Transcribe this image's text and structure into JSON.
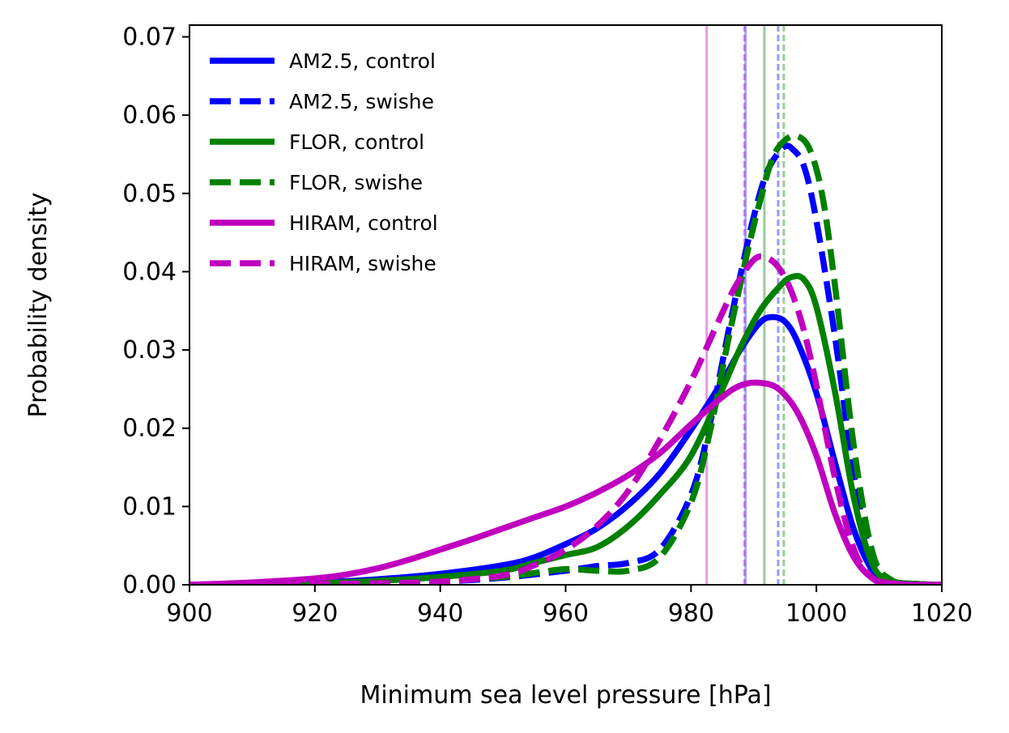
{
  "chart_data": {
    "type": "line",
    "xlabel": "Minimum sea level pressure [hPa]",
    "ylabel": "Probability density",
    "xlim": [
      900,
      1020
    ],
    "ylim": [
      0,
      0.0715
    ],
    "xticks": [
      900,
      920,
      940,
      960,
      980,
      1000,
      1020
    ],
    "yticks": [
      0.0,
      0.01,
      0.02,
      0.03,
      0.04,
      0.05,
      0.06,
      0.07
    ],
    "grid": false,
    "legend_position": "top-left",
    "series": [
      {
        "name": "AM2.5, control",
        "color": "#0000ff",
        "dash": "solid",
        "x": [
          900,
          920,
          930,
          940,
          950,
          955,
          960,
          965,
          970,
          975,
          980,
          985,
          988,
          991,
          993,
          995,
          997,
          1000,
          1003,
          1006,
          1009,
          1012,
          1016,
          1020
        ],
        "y": [
          0.0,
          0.0003,
          0.0007,
          0.0014,
          0.0025,
          0.0035,
          0.0052,
          0.0072,
          0.0102,
          0.0142,
          0.0198,
          0.026,
          0.0302,
          0.0335,
          0.0342,
          0.0336,
          0.031,
          0.0245,
          0.0155,
          0.007,
          0.0018,
          0.0004,
          0.0001,
          0.0
        ]
      },
      {
        "name": "AM2.5, swishe",
        "color": "#0000ff",
        "dash": "dashed",
        "x": [
          900,
          920,
          930,
          940,
          950,
          960,
          965,
          970,
          975,
          980,
          983,
          986,
          988,
          990,
          992,
          994,
          995,
          996,
          998,
          1000,
          1003,
          1006,
          1009,
          1012,
          1016,
          1020
        ],
        "y": [
          0.0,
          0.0001,
          0.0002,
          0.0004,
          0.0009,
          0.0018,
          0.0024,
          0.0028,
          0.0045,
          0.0115,
          0.0205,
          0.0325,
          0.04,
          0.047,
          0.0525,
          0.0553,
          0.056,
          0.0558,
          0.0535,
          0.0465,
          0.0315,
          0.014,
          0.0032,
          0.0005,
          0.0001,
          0.0
        ]
      },
      {
        "name": "FLOR, control",
        "color": "#008000",
        "dash": "solid",
        "x": [
          900,
          920,
          930,
          940,
          950,
          955,
          960,
          965,
          970,
          975,
          980,
          985,
          988,
          991,
          994,
          996,
          998,
          1000,
          1003,
          1006,
          1009,
          1012,
          1016,
          1020
        ],
        "y": [
          0.0,
          0.0002,
          0.0005,
          0.001,
          0.0018,
          0.0028,
          0.0038,
          0.0048,
          0.0075,
          0.0115,
          0.0165,
          0.025,
          0.0305,
          0.035,
          0.038,
          0.0393,
          0.039,
          0.0355,
          0.0245,
          0.011,
          0.0025,
          0.0005,
          0.0001,
          0.0
        ]
      },
      {
        "name": "FLOR, swishe",
        "color": "#008000",
        "dash": "dashed",
        "x": [
          900,
          920,
          930,
          940,
          950,
          955,
          960,
          965,
          970,
          975,
          980,
          983,
          986,
          989,
          991,
          993,
          995,
          997,
          999,
          1001,
          1003,
          1006,
          1009,
          1012,
          1016,
          1020
        ],
        "y": [
          0.0,
          0.0001,
          0.0003,
          0.0005,
          0.001,
          0.0015,
          0.002,
          0.0018,
          0.0018,
          0.0035,
          0.0105,
          0.0195,
          0.0315,
          0.0425,
          0.049,
          0.0545,
          0.0568,
          0.0573,
          0.0555,
          0.0495,
          0.038,
          0.0175,
          0.004,
          0.0006,
          0.0001,
          0.0
        ]
      },
      {
        "name": "HIRAM, control",
        "color": "#bf00bf",
        "dash": "solid",
        "x": [
          900,
          910,
          920,
          925,
          930,
          935,
          940,
          945,
          950,
          955,
          960,
          965,
          970,
          975,
          980,
          985,
          988,
          991,
          994,
          997,
          1000,
          1003,
          1006,
          1009,
          1012,
          1016,
          1020
        ],
        "y": [
          0.0,
          0.0003,
          0.0008,
          0.0013,
          0.0021,
          0.0032,
          0.0045,
          0.0058,
          0.0072,
          0.0086,
          0.01,
          0.0118,
          0.014,
          0.0168,
          0.0205,
          0.024,
          0.0255,
          0.0258,
          0.025,
          0.022,
          0.0165,
          0.009,
          0.0035,
          0.0008,
          0.0002,
          0.0,
          0.0
        ]
      },
      {
        "name": "HIRAM, swishe",
        "color": "#bf00bf",
        "dash": "dashed",
        "x": [
          900,
          920,
          930,
          940,
          950,
          955,
          960,
          965,
          970,
          975,
          980,
          984,
          987,
          990,
          992,
          994,
          996,
          998,
          1000,
          1003,
          1006,
          1009,
          1012,
          1016,
          1020
        ],
        "y": [
          0.0,
          0.0001,
          0.0002,
          0.0004,
          0.0012,
          0.0025,
          0.0045,
          0.0075,
          0.012,
          0.0185,
          0.026,
          0.033,
          0.038,
          0.0415,
          0.0418,
          0.0405,
          0.0375,
          0.0325,
          0.0255,
          0.0135,
          0.0045,
          0.0008,
          0.0001,
          0.0,
          0.0
        ]
      }
    ],
    "vertical_lines": [
      {
        "x": 982.5,
        "color": "#bf00bf",
        "dash": "solid",
        "alpha": 0.4
      },
      {
        "x": 988.5,
        "color": "#bf00bf",
        "dash": "dashed",
        "alpha": 0.4
      },
      {
        "x": 988.7,
        "color": "#0000ff",
        "dash": "solid",
        "alpha": 0.35
      },
      {
        "x": 991.7,
        "color": "#008000",
        "dash": "solid",
        "alpha": 0.4
      },
      {
        "x": 993.9,
        "color": "#0000ff",
        "dash": "dashed",
        "alpha": 0.4
      },
      {
        "x": 994.8,
        "color": "#008000",
        "dash": "dashed",
        "alpha": 0.4
      }
    ]
  }
}
